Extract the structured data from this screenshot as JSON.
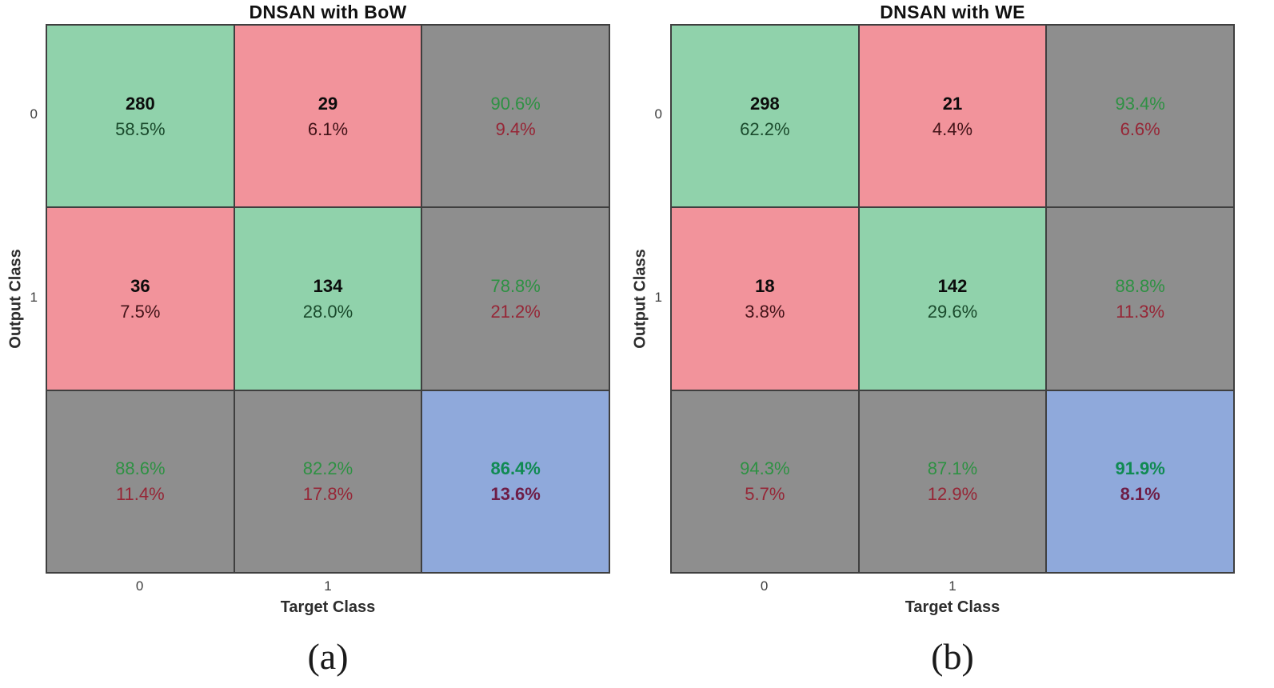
{
  "colors": {
    "cell_green": "#90d2ab",
    "cell_red": "#f2939b",
    "cell_gray": "#8e8e8e",
    "cell_blue": "#8fa9db",
    "grid_line": "#3f3f3f",
    "text_count": "#0c0c0c",
    "text_dark_green": "#1a4a2c",
    "text_dark_red": "#421318",
    "text_summary_green": "#2e9143",
    "text_summary_red": "#962636",
    "text_total_green": "#108a52",
    "text_total_maroon": "#6e1d46"
  },
  "panels": [
    {
      "title": "DNSAN with BoW",
      "xlabel": "Target Class",
      "ylabel": "Output Class",
      "yticks": [
        "0",
        "1"
      ],
      "xticks": [
        "0",
        "1",
        ""
      ],
      "caption": "(a)",
      "cells": [
        {
          "line1": "280",
          "line2": "58.5%"
        },
        {
          "line1": "29",
          "line2": "6.1%"
        },
        {
          "line1": "90.6%",
          "line2": "9.4%"
        },
        {
          "line1": "36",
          "line2": "7.5%"
        },
        {
          "line1": "134",
          "line2": "28.0%"
        },
        {
          "line1": "78.8%",
          "line2": "21.2%"
        },
        {
          "line1": "88.6%",
          "line2": "11.4%"
        },
        {
          "line1": "82.2%",
          "line2": "17.8%"
        },
        {
          "line1": "86.4%",
          "line2": "13.6%"
        }
      ]
    },
    {
      "title": "DNSAN with WE",
      "xlabel": "Target Class",
      "ylabel": "Output Class",
      "yticks": [
        "0",
        "1"
      ],
      "xticks": [
        "0",
        "1",
        ""
      ],
      "caption": "(b)",
      "cells": [
        {
          "line1": "298",
          "line2": "62.2%"
        },
        {
          "line1": "21",
          "line2": "4.4%"
        },
        {
          "line1": "93.4%",
          "line2": "6.6%"
        },
        {
          "line1": "18",
          "line2": "3.8%"
        },
        {
          "line1": "142",
          "line2": "29.6%"
        },
        {
          "line1": "88.8%",
          "line2": "11.3%"
        },
        {
          "line1": "94.3%",
          "line2": "5.7%"
        },
        {
          "line1": "87.1%",
          "line2": "12.9%"
        },
        {
          "line1": "91.9%",
          "line2": "8.1%"
        }
      ]
    }
  ],
  "chart_data": [
    {
      "type": "heatmap",
      "subtype": "confusion_matrix",
      "title": "DNSAN with BoW",
      "xlabel": "Target Class",
      "ylabel": "Output Class",
      "classes": [
        "0",
        "1"
      ],
      "counts": [
        [
          280,
          29
        ],
        [
          36,
          134
        ]
      ],
      "percent_of_total": [
        [
          58.5,
          6.1
        ],
        [
          7.5,
          28.0
        ]
      ],
      "row_summary_pct_correct_incorrect": [
        [
          90.6,
          9.4
        ],
        [
          78.8,
          21.2
        ]
      ],
      "column_summary_pct_correct_incorrect": [
        [
          88.6,
          11.4
        ],
        [
          82.2,
          17.8
        ]
      ],
      "overall_accuracy_pct": 86.4,
      "overall_error_pct": 13.6,
      "caption": "(a)",
      "legend_position": "none",
      "grid": false
    },
    {
      "type": "heatmap",
      "subtype": "confusion_matrix",
      "title": "DNSAN with WE",
      "xlabel": "Target Class",
      "ylabel": "Output Class",
      "classes": [
        "0",
        "1"
      ],
      "counts": [
        [
          298,
          21
        ],
        [
          18,
          142
        ]
      ],
      "percent_of_total": [
        [
          62.2,
          4.4
        ],
        [
          3.8,
          29.6
        ]
      ],
      "row_summary_pct_correct_incorrect": [
        [
          93.4,
          6.6
        ],
        [
          88.8,
          11.3
        ]
      ],
      "column_summary_pct_correct_incorrect": [
        [
          94.3,
          5.7
        ],
        [
          87.1,
          12.9
        ]
      ],
      "overall_accuracy_pct": 91.9,
      "overall_error_pct": 8.1,
      "caption": "(b)",
      "legend_position": "none",
      "grid": false
    }
  ]
}
